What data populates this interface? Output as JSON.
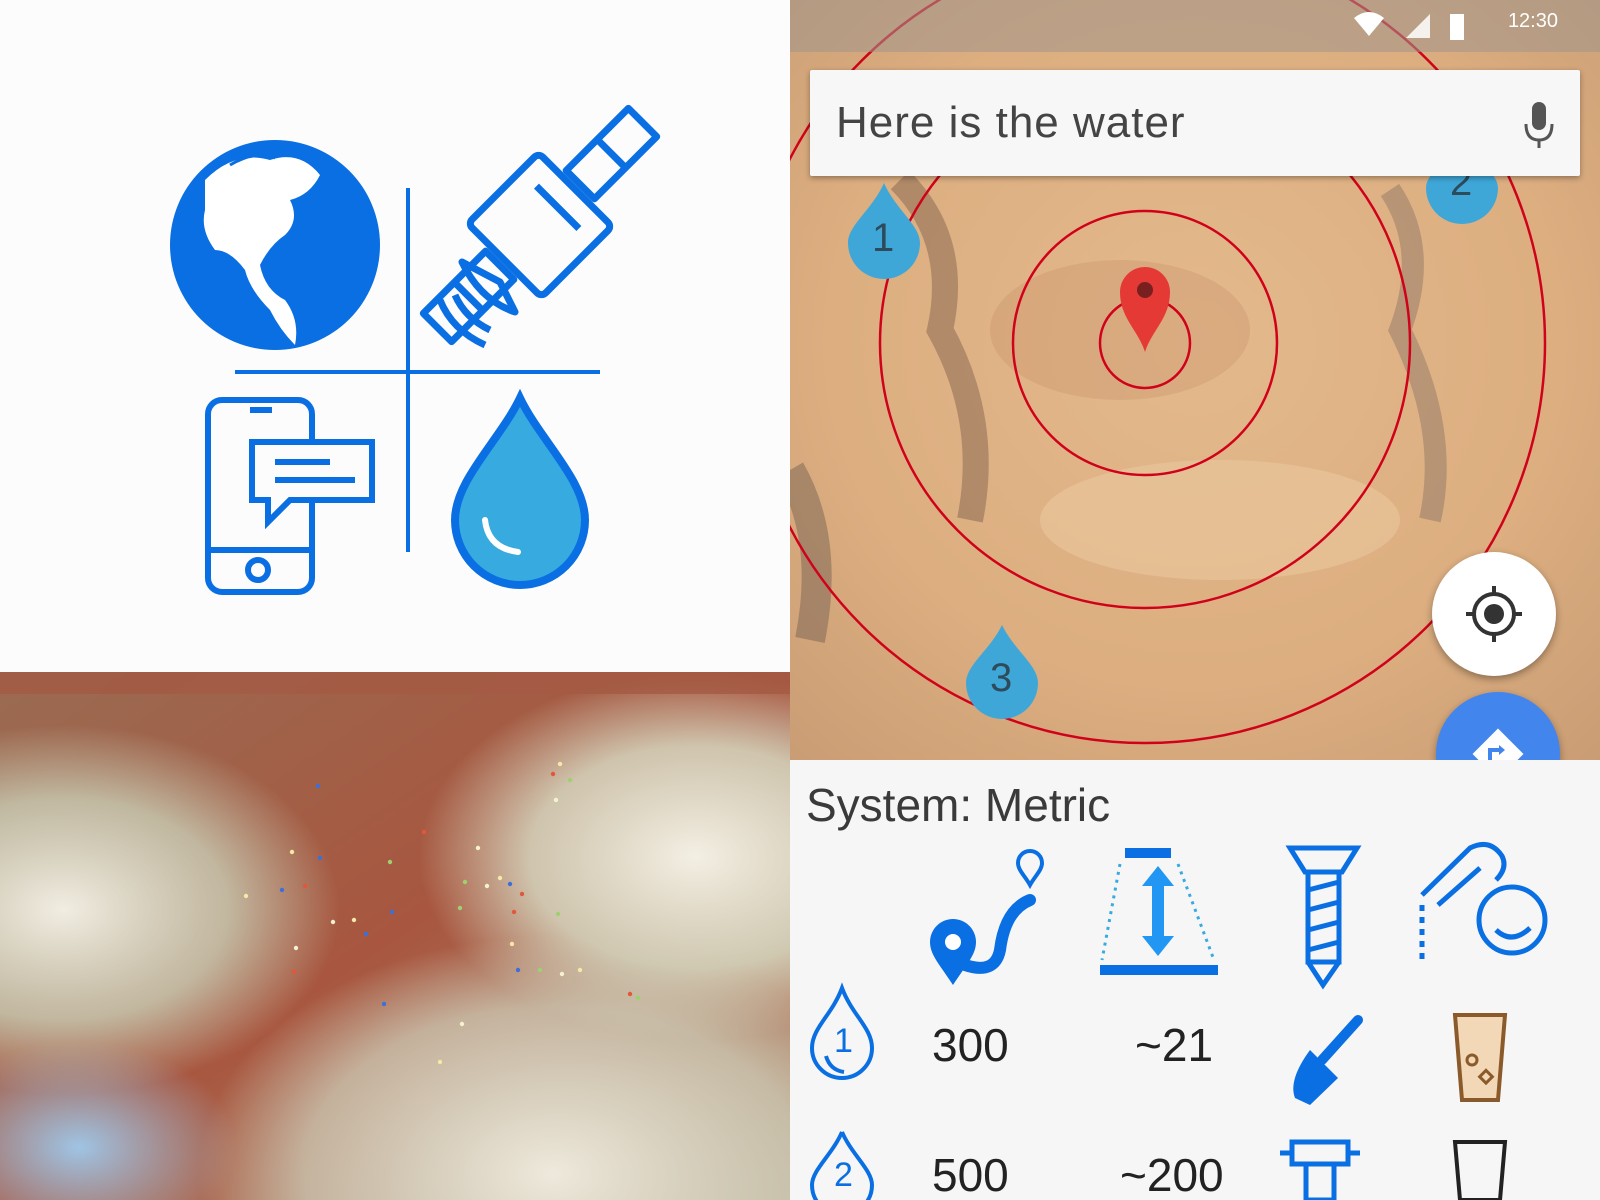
{
  "status_bar": {
    "time": "12:30"
  },
  "search": {
    "text": "Here is the water"
  },
  "map": {
    "markers": [
      {
        "label": "1"
      },
      {
        "label": "2"
      },
      {
        "label": "3"
      }
    ],
    "ring_color": "#d0021b",
    "pin_color": "#e53935"
  },
  "sheet": {
    "system_label": "System: Metric",
    "rows": [
      {
        "marker": "1",
        "distance": "300",
        "depth": "~21"
      },
      {
        "marker": "2",
        "distance": "500",
        "depth": "~200"
      }
    ]
  },
  "colors": {
    "icon_blue": "#0a6fe3",
    "water_fill": "#37aadf",
    "fab_blue": "#4286ed"
  },
  "icons": [
    "globe-icon",
    "satellite-icon",
    "phone-message-icon",
    "water-drop-icon",
    "route-icon",
    "depth-icon",
    "drill-bit-icon",
    "water-tap-icon",
    "shovel-icon",
    "water-glass-icon",
    "pump-icon",
    "gps-locate-icon",
    "directions-icon",
    "mic-icon"
  ]
}
